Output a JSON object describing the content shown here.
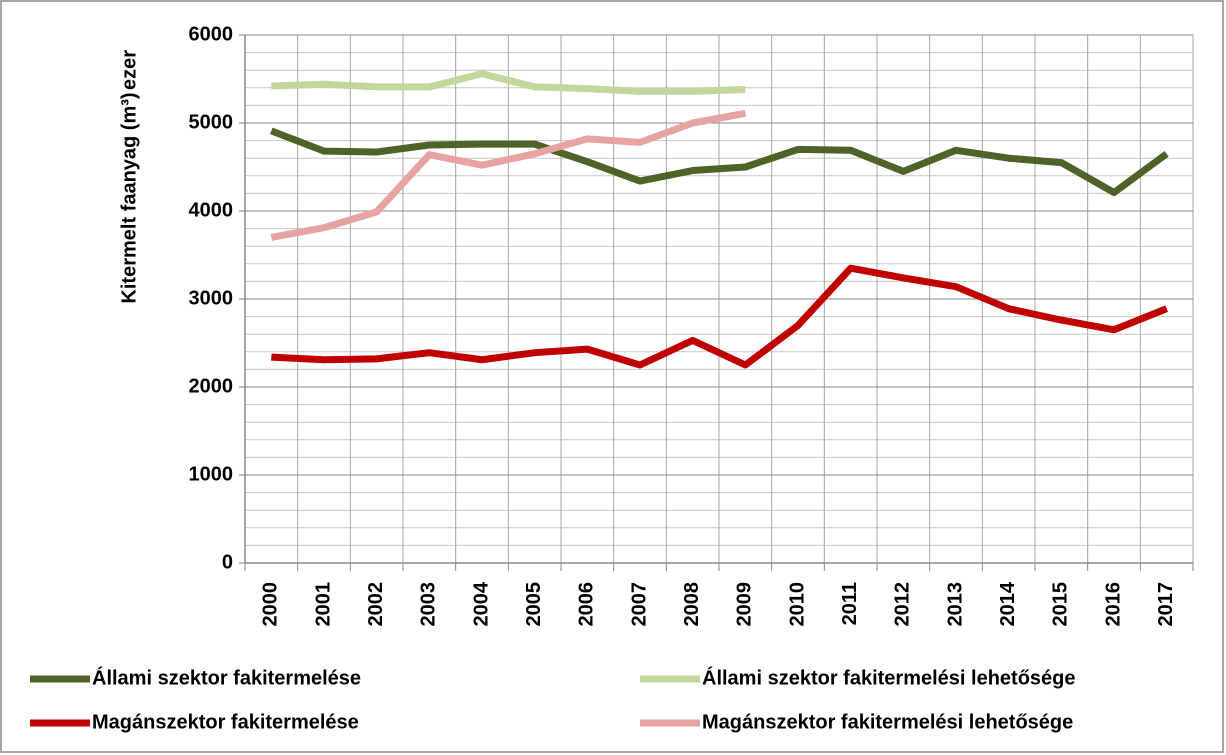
{
  "chart_data": {
    "type": "line",
    "y_label": "Kitermelt faanyag (m³)",
    "y_unit": "ezer",
    "categories": [
      "2000",
      "2001",
      "2002",
      "2003",
      "2004",
      "2005",
      "2006",
      "2007",
      "2008",
      "2009",
      "2010",
      "2011",
      "2012",
      "2013",
      "2014",
      "2015",
      "2016",
      "2017"
    ],
    "series": [
      {
        "name": "Állami szektor fakitermelése",
        "color": "#4f6228",
        "values": [
          4910,
          4680,
          4670,
          4750,
          4760,
          4760,
          4560,
          4340,
          4460,
          4500,
          4700,
          4690,
          4450,
          4690,
          4600,
          4550,
          4210,
          4650
        ]
      },
      {
        "name": "Állami szektor fakitermelési lehetősége",
        "color": "#c3d69b",
        "values": [
          5420,
          5440,
          5410,
          5410,
          5560,
          5410,
          5390,
          5360,
          5360,
          5380,
          null,
          null,
          null,
          null,
          null,
          null,
          null,
          null
        ]
      },
      {
        "name": "Magánszektor fakitermelése",
        "color": "#c00000",
        "values": [
          2340,
          2310,
          2320,
          2390,
          2310,
          2390,
          2430,
          2250,
          2530,
          2250,
          2700,
          3350,
          3240,
          3140,
          2890,
          2760,
          2650,
          2890
        ]
      },
      {
        "name": "Magánszektor fakitermelési lehetősége",
        "color": "#e6a3a1",
        "values": [
          3700,
          3810,
          3990,
          4640,
          4520,
          4650,
          4820,
          4780,
          5000,
          5110,
          null,
          null,
          null,
          null,
          null,
          null,
          null,
          null
        ]
      }
    ],
    "ylim": [
      0,
      6000
    ],
    "yticks": [
      0,
      1000,
      2000,
      3000,
      4000,
      5000,
      6000
    ],
    "minor_yticks": [
      200,
      400,
      600,
      800,
      1200,
      1400,
      1600,
      1800,
      2200,
      2400,
      2600,
      2800,
      3200,
      3400,
      3600,
      3800,
      4200,
      4400,
      4600,
      4800,
      5200,
      5400,
      5600,
      5800
    ],
    "grid": true,
    "legend": "bottom"
  }
}
